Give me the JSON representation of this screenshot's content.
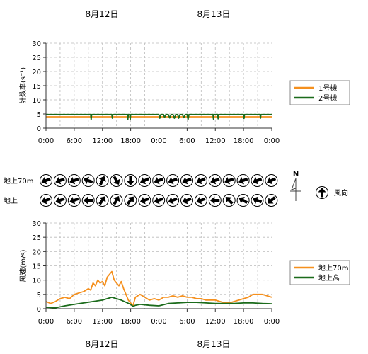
{
  "dates": [
    "8月12日",
    "8月13日"
  ],
  "time_ticks": [
    "0:00",
    "6:00",
    "12:00",
    "18:00",
    "0:00",
    "6:00",
    "12:00",
    "18:00",
    "0:00"
  ],
  "wind_labels": {
    "upper": "地上70m",
    "lower": "地上"
  },
  "north_label": "N",
  "direction_legend": "風向",
  "colors": {
    "orange": "#f5901e",
    "green": "#1b6b1b",
    "grid": "#bbbbbb",
    "frame": "#333333"
  },
  "chart_data": [
    {
      "type": "line",
      "ylabel": "計数率(s⁻¹)",
      "ylim": [
        0,
        30
      ],
      "yticks": [
        0,
        5,
        10,
        15,
        20,
        25,
        30
      ],
      "x_range_hours": [
        0,
        48
      ],
      "grid": true,
      "legend_placement": "right",
      "series": [
        {
          "name": "1号機",
          "color": "#f5901e",
          "x": [
            0,
            48
          ],
          "y": [
            4,
            4
          ]
        },
        {
          "name": "2号機",
          "color": "#1b6b1b",
          "x": [
            0,
            9.5,
            9.6,
            9.7,
            14,
            14.1,
            14.2,
            17.3,
            17.4,
            17.5,
            17.8,
            17.9,
            18,
            24,
            24.2,
            24.4,
            25,
            25.2,
            25.5,
            26,
            26.3,
            26.6,
            27,
            27.3,
            27.6,
            28,
            28.2,
            28.5,
            29,
            29.3,
            29.6,
            30,
            30.2,
            30.4,
            35.5,
            35.6,
            35.7,
            36.5,
            36.6,
            36.7,
            42,
            42.1,
            42.2,
            45.5,
            45.6,
            45.7,
            48
          ],
          "y": [
            4.8,
            4.8,
            3.0,
            4.8,
            4.8,
            3.5,
            4.8,
            4.8,
            3.0,
            4.8,
            4.8,
            3.0,
            4.8,
            4.8,
            3.5,
            4.8,
            4.8,
            3.8,
            4.8,
            4.8,
            3.6,
            4.8,
            4.8,
            3.5,
            4.8,
            4.8,
            3.5,
            4.8,
            4.8,
            3.7,
            4.8,
            4.8,
            3.0,
            4.8,
            4.8,
            3.2,
            4.8,
            4.8,
            3.3,
            4.8,
            4.8,
            3.4,
            4.8,
            4.8,
            3.5,
            4.8,
            4.8
          ]
        }
      ]
    },
    {
      "type": "line",
      "ylabel": "風速(m/s)",
      "ylim": [
        0,
        30
      ],
      "yticks": [
        0,
        5,
        10,
        15,
        20,
        25,
        30
      ],
      "x_range_hours": [
        0,
        48
      ],
      "grid": true,
      "legend_placement": "right",
      "series": [
        {
          "name": "地上70m",
          "color": "#f5901e",
          "x": [
            0,
            1,
            2,
            3,
            4,
            5,
            6,
            7,
            8,
            9,
            9.5,
            10,
            10.5,
            11,
            11.5,
            12,
            12.5,
            13,
            13.5,
            14,
            14.5,
            15,
            15.5,
            16,
            16.5,
            17,
            17.5,
            18,
            18.5,
            19,
            20,
            21,
            22,
            23,
            24,
            25,
            26,
            27,
            28,
            29,
            30,
            31,
            32,
            33,
            34,
            35,
            36,
            37,
            38,
            39,
            40,
            41,
            42,
            43,
            44,
            45,
            46,
            47,
            48
          ],
          "y": [
            2.5,
            1.8,
            2.5,
            3.5,
            4,
            3.5,
            5,
            5.5,
            6,
            7,
            6.5,
            9,
            8,
            10,
            9,
            9.5,
            8,
            11,
            12,
            13,
            10,
            9,
            8,
            9.5,
            7,
            5,
            3,
            2,
            1,
            4,
            5,
            4,
            3,
            3.5,
            3,
            4,
            4,
            4.5,
            4,
            4.5,
            4,
            4,
            3.5,
            3.5,
            3,
            3,
            3,
            2.5,
            2,
            2,
            2.5,
            3,
            3.5,
            4,
            5,
            5,
            5,
            4.5,
            4
          ]
        },
        {
          "name": "地上高",
          "color": "#1b6b1b",
          "x": [
            0,
            2,
            4,
            6,
            8,
            10,
            12,
            14,
            16,
            18,
            18.5,
            19,
            20,
            22,
            24,
            26,
            28,
            30,
            32,
            34,
            36,
            38,
            40,
            42,
            44,
            46,
            48
          ],
          "y": [
            0.5,
            0.3,
            1,
            1.5,
            2,
            2.5,
            3,
            4,
            3,
            1.5,
            0.8,
            1.2,
            1.5,
            1.2,
            1,
            1.8,
            2,
            2.2,
            2.2,
            2,
            1.8,
            1.8,
            1.8,
            2,
            2,
            1.8,
            1.7
          ]
        }
      ]
    },
    {
      "type": "table",
      "title": "風向",
      "rows": [
        {
          "label": "地上70m",
          "angles": [
            250,
            250,
            250,
            290,
            25,
            150,
            180,
            245,
            250,
            250,
            250,
            245,
            250,
            250,
            250,
            250,
            245
          ]
        },
        {
          "label": "地上",
          "angles": [
            250,
            250,
            250,
            270,
            35,
            30,
            40,
            250,
            250,
            250,
            250,
            250,
            270,
            315,
            300,
            290,
            230
          ]
        }
      ]
    }
  ]
}
